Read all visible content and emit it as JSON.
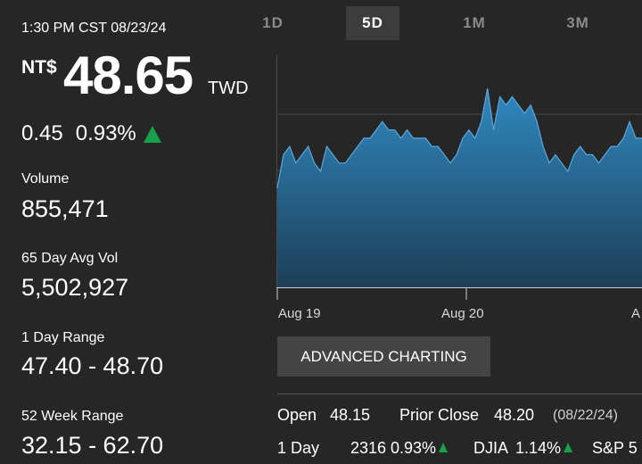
{
  "header": {
    "timestamp": "1:30 PM CST 08/23/24",
    "currency_symbol": "NT$",
    "price": "48.65",
    "currency_code": "TWD",
    "change": "0.45",
    "change_pct": "0.93%",
    "change_direction": "up",
    "up_color": "#17a14a"
  },
  "stats": [
    {
      "label": "Volume",
      "value": "855,471"
    },
    {
      "label": "65 Day Avg Vol",
      "value": "5,502,927"
    },
    {
      "label": "1 Day Range",
      "value": "47.40 - 48.70"
    },
    {
      "label": "52 Week Range",
      "value": "32.15 - 62.70"
    }
  ],
  "tabs": [
    {
      "label": "1D",
      "active": false
    },
    {
      "label": "5D",
      "active": true
    },
    {
      "label": "1M",
      "active": false
    },
    {
      "label": "3M",
      "active": false
    }
  ],
  "chart_data": {
    "type": "area",
    "x_tick_labels": [
      "Aug 19",
      "Aug 20",
      "A"
    ],
    "series": [
      {
        "values": [
          48.15,
          48.35,
          48.4,
          48.3,
          48.35,
          48.4,
          48.3,
          48.25,
          48.4,
          48.35,
          48.3,
          48.3,
          48.35,
          48.4,
          48.45,
          48.45,
          48.5,
          48.55,
          48.5,
          48.5,
          48.45,
          48.5,
          48.45,
          48.45,
          48.45,
          48.4,
          48.4,
          48.35,
          48.3,
          48.35,
          48.45,
          48.5,
          48.45,
          48.55,
          48.75,
          48.5,
          48.7,
          48.65,
          48.7,
          48.65,
          48.6,
          48.65,
          48.55,
          48.4,
          48.3,
          48.35,
          48.3,
          48.25,
          48.35,
          48.4,
          48.35,
          48.35,
          48.3,
          48.35,
          48.4,
          48.4,
          48.45,
          48.55,
          48.45,
          48.45
        ],
        "fill_color": "#2f7fb3"
      }
    ],
    "y_gridlines": 3,
    "grid": true
  },
  "actions": {
    "advanced_charting": "ADVANCED CHARTING"
  },
  "quote_info": {
    "open_label": "Open",
    "open_value": "48.15",
    "prior_close_label": "Prior Close",
    "prior_close_value": "48.20",
    "prior_close_date": "(08/22/24)",
    "one_day_label": "1 Day",
    "one_day_value": "2316",
    "one_day_pct": "0.93%",
    "djia_label": "DJIA",
    "djia_pct": "1.14%",
    "sp_label": "S&P 5"
  }
}
